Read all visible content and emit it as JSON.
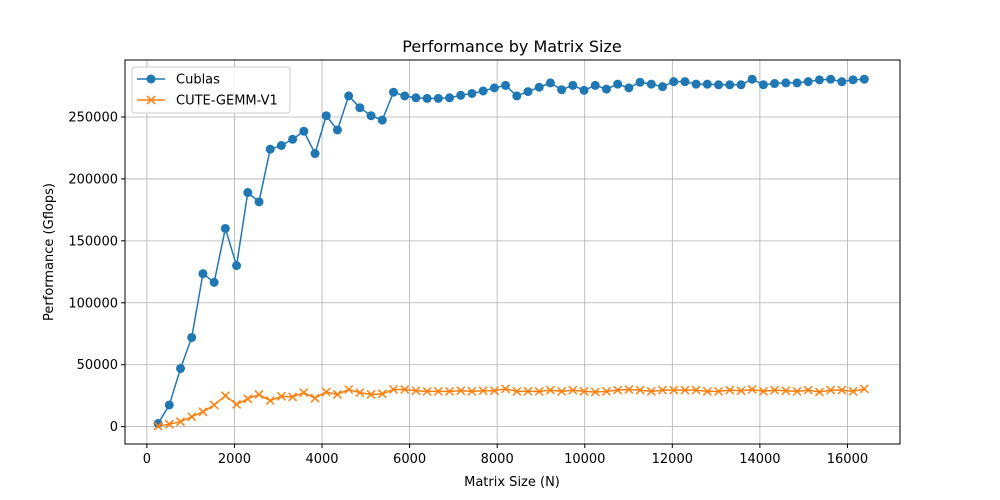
{
  "chart_data": {
    "type": "line",
    "title": "Performance by Matrix Size",
    "xlabel": "Matrix Size (N)",
    "ylabel": "Performance (Gflops)",
    "xlim": [
      -500,
      17200
    ],
    "ylim": [
      -14000,
      296000
    ],
    "xticks": [
      0,
      2000,
      4000,
      6000,
      8000,
      10000,
      12000,
      14000,
      16000
    ],
    "yticks": [
      0,
      50000,
      100000,
      150000,
      200000,
      250000
    ],
    "grid": true,
    "legend_position": "top-left",
    "x": [
      256,
      512,
      768,
      1024,
      1280,
      1536,
      1792,
      2048,
      2304,
      2560,
      2816,
      3072,
      3328,
      3584,
      3840,
      4096,
      4352,
      4608,
      4864,
      5120,
      5376,
      5632,
      5888,
      6144,
      6400,
      6656,
      6912,
      7168,
      7424,
      7680,
      7936,
      8192,
      8448,
      8704,
      8960,
      9216,
      9472,
      9728,
      9984,
      10240,
      10496,
      10752,
      11008,
      11264,
      11520,
      11776,
      12032,
      12288,
      12544,
      12800,
      13056,
      13312,
      13568,
      13824,
      14080,
      14336,
      14592,
      14848,
      15104,
      15360,
      15616,
      15872,
      16128,
      16384
    ],
    "series": [
      {
        "name": "Cublas",
        "color": "#1f77b4",
        "marker": "circle",
        "values": [
          2500,
          17500,
          47000,
          72000,
          123500,
          116500,
          160000,
          130000,
          189000,
          181500,
          224000,
          227000,
          232000,
          238500,
          220500,
          251000,
          239500,
          267000,
          257500,
          251000,
          247500,
          270000,
          267000,
          265500,
          265000,
          265000,
          265500,
          267500,
          269000,
          271000,
          273500,
          275500,
          267000,
          270500,
          274000,
          277500,
          272000,
          275500,
          271500,
          275500,
          272500,
          276500,
          273500,
          278000,
          276500,
          274500,
          278500,
          278500,
          276500,
          276500,
          276000,
          276000,
          276000,
          280500,
          276000,
          277000,
          277500,
          277500,
          278500,
          280000,
          280500,
          278500,
          280000,
          280500
        ]
      },
      {
        "name": "CUTE-GEMM-V1",
        "color": "#ff7f0e",
        "marker": "x",
        "values": [
          500,
          2000,
          4000,
          8000,
          12000,
          17500,
          25000,
          18000,
          22500,
          26000,
          21000,
          24500,
          24000,
          27500,
          23000,
          28000,
          26000,
          30000,
          27500,
          26000,
          26500,
          30000,
          30000,
          29000,
          28500,
          28500,
          28500,
          29000,
          28500,
          29000,
          29000,
          30500,
          28500,
          28500,
          28500,
          29500,
          28500,
          29500,
          28500,
          28000,
          28500,
          29500,
          30000,
          29500,
          28500,
          29500,
          29500,
          29500,
          29500,
          28500,
          28500,
          29500,
          29000,
          30000,
          28500,
          29500,
          29000,
          28500,
          29500,
          28000,
          29500,
          29500,
          28500,
          30500
        ]
      }
    ]
  }
}
